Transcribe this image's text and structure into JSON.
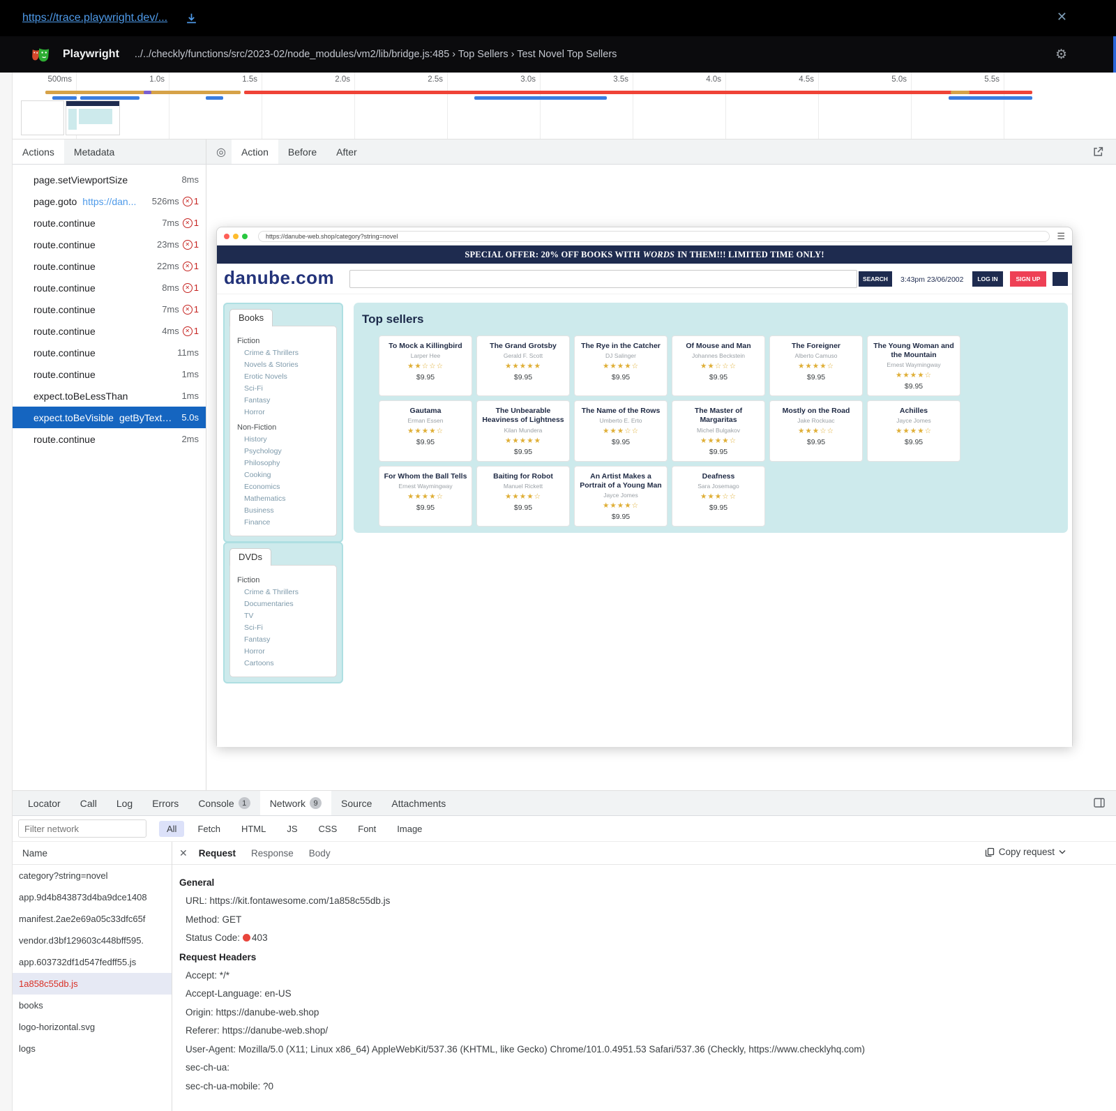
{
  "overlay": {
    "trace_link": "https://trace.playwright.dev/..."
  },
  "header": {
    "app_title": "Playwright",
    "trace_path": "../../checkly/functions/src/2023-02/node_modules/vm2/lib/bridge.js:485 › Top Sellers › Test Novel Top Sellers"
  },
  "timeline": {
    "ticks": [
      "500ms",
      "1.0s",
      "1.5s",
      "2.0s",
      "2.5s",
      "3.0s",
      "3.5s",
      "4.0s",
      "4.5s",
      "5.0s",
      "5.5s"
    ]
  },
  "colors": {
    "accent_blue": "#1565c0",
    "error_red": "#c5221f",
    "timeline_red": "#ef4337",
    "timeline_orange": "#d6a248",
    "timeline_blue": "#3a7de0",
    "timeline_purple": "#7a5fd0",
    "site_navy": "#1e2b4f",
    "site_red": "#ee4055",
    "site_teal": "#cdeaec",
    "star_gold": "#dfae35"
  },
  "actions_panel": {
    "tabs": [
      {
        "label": "Actions",
        "selected": true
      },
      {
        "label": "Metadata"
      }
    ],
    "rows": [
      {
        "label": "page.setViewportSize",
        "time": "8ms"
      },
      {
        "label": "page.goto",
        "link": "https://dan...",
        "time": "526ms",
        "errors": "1"
      },
      {
        "label": "route.continue",
        "time": "7ms",
        "errors": "1"
      },
      {
        "label": "route.continue",
        "time": "23ms",
        "errors": "1"
      },
      {
        "label": "route.continue",
        "time": "22ms",
        "errors": "1"
      },
      {
        "label": "route.continue",
        "time": "8ms",
        "errors": "1"
      },
      {
        "label": "route.continue",
        "time": "7ms",
        "errors": "1"
      },
      {
        "label": "route.continue",
        "time": "4ms",
        "errors": "1"
      },
      {
        "label": "route.continue",
        "time": "11ms"
      },
      {
        "label": "route.continue",
        "time": "1ms"
      },
      {
        "label": "expect.toBeLessThan",
        "time": "1ms"
      },
      {
        "label": "expect.toBeVisible",
        "selector": "getByText…",
        "time": "5.0s",
        "selected": true
      },
      {
        "label": "route.continue",
        "time": "2ms"
      }
    ]
  },
  "action_view": {
    "tabs": [
      {
        "label": "Action",
        "selected": true
      },
      {
        "label": "Before"
      },
      {
        "label": "After"
      }
    ]
  },
  "site": {
    "url": "https://danube-web.shop/category?string=novel",
    "banner": {
      "pre": "SPECIAL OFFER: 20% OFF BOOKS WITH ",
      "em": "WORDS",
      "post": " IN THEM!!! LIMITED TIME ONLY!"
    },
    "logo": "danube.com",
    "search_button": "SEARCH",
    "datetime": "3:43pm 23/06/2002",
    "login": "LOG IN",
    "signup": "SIGN UP",
    "books_nav": {
      "title": "Books",
      "rows": [
        {
          "label": "Fiction",
          "header": true
        },
        {
          "label": "Crime & Thrillers"
        },
        {
          "label": "Novels & Stories"
        },
        {
          "label": "Erotic Novels"
        },
        {
          "label": "Sci-Fi"
        },
        {
          "label": "Fantasy"
        },
        {
          "label": "Horror"
        },
        {
          "label": "Non-Fiction",
          "header": true
        },
        {
          "label": "History"
        },
        {
          "label": "Psychology"
        },
        {
          "label": "Philosophy"
        },
        {
          "label": "Cooking"
        },
        {
          "label": "Economics"
        },
        {
          "label": "Mathematics"
        },
        {
          "label": "Business"
        },
        {
          "label": "Finance"
        }
      ]
    },
    "dvds_nav": {
      "title": "DVDs",
      "rows": [
        {
          "label": "Fiction",
          "header": true
        },
        {
          "label": "Crime & Thrillers"
        },
        {
          "label": "Documentaries"
        },
        {
          "label": "TV"
        },
        {
          "label": "Sci-Fi"
        },
        {
          "label": "Fantasy"
        },
        {
          "label": "Horror"
        },
        {
          "label": "Cartoons"
        }
      ]
    },
    "top_sellers": {
      "title": "Top sellers",
      "items": [
        {
          "title": "To Mock a Killingbird",
          "author": "Larper Hee",
          "rating": 2,
          "price": "$9.95"
        },
        {
          "title": "The Grand Grotsby",
          "author": "Gerald F. Scott",
          "rating": 5,
          "price": "$9.95"
        },
        {
          "title": "The Rye in the Catcher",
          "author": "DJ Salinger",
          "rating": 4,
          "price": "$9.95"
        },
        {
          "title": "Of Mouse and Man",
          "author": "Johannes Beckstein",
          "rating": 2,
          "price": "$9.95"
        },
        {
          "title": "The Foreigner",
          "author": "Alberto Camuso",
          "rating": 4,
          "price": "$9.95"
        },
        {
          "title": "The Young Woman and the Mountain",
          "author": "Ernest Waymingway",
          "rating": 4,
          "price": "$9.95"
        },
        {
          "title": "Gautama",
          "author": "Erman Essen",
          "rating": 4,
          "price": "$9.95"
        },
        {
          "title": "The Unbearable Heaviness of Lightness",
          "author": "Kilan Mundera",
          "rating": 5,
          "price": "$9.95"
        },
        {
          "title": "The Name of the Rows",
          "author": "Umberto E. Erto",
          "rating": 3,
          "price": "$9.95"
        },
        {
          "title": "The Master of Margaritas",
          "author": "Michel Bulgakov",
          "rating": 4,
          "price": "$9.95"
        },
        {
          "title": "Mostly on the Road",
          "author": "Jake Rockuac",
          "rating": 3,
          "price": "$9.95"
        },
        {
          "title": "Achilles",
          "author": "Jayce Jomes",
          "rating": 4,
          "price": "$9.95"
        },
        {
          "title": "For Whom the Ball Tells",
          "author": "Ernest Waymingway",
          "rating": 4,
          "price": "$9.95"
        },
        {
          "title": "Baiting for Robot",
          "author": "Manuel Rickett",
          "rating": 4,
          "price": "$9.95"
        },
        {
          "title": "An Artist Makes a Portrait of a Young Man",
          "author": "Jayce Jomes",
          "rating": 4,
          "price": "$9.95"
        },
        {
          "title": "Deafness",
          "author": "Sara Josemago",
          "rating": 3,
          "price": "$9.95"
        }
      ]
    }
  },
  "network_panel": {
    "tabs": [
      {
        "label": "Locator"
      },
      {
        "label": "Call"
      },
      {
        "label": "Log"
      },
      {
        "label": "Errors"
      },
      {
        "label": "Console",
        "badge": "1"
      },
      {
        "label": "Network",
        "badge": "9",
        "selected": true
      },
      {
        "label": "Source"
      },
      {
        "label": "Attachments"
      }
    ],
    "filter_placeholder": "Filter network",
    "type_filters": [
      {
        "label": "All",
        "selected": true
      },
      {
        "label": "Fetch"
      },
      {
        "label": "HTML"
      },
      {
        "label": "JS"
      },
      {
        "label": "CSS"
      },
      {
        "label": "Font"
      },
      {
        "label": "Image"
      }
    ],
    "name_header": "Name",
    "requests": [
      {
        "name": "category?string=novel"
      },
      {
        "name": "app.9d4b843873d4ba9dce1408"
      },
      {
        "name": "manifest.2ae2e69a05c33dfc65f"
      },
      {
        "name": "vendor.d3bf129603c448bff595."
      },
      {
        "name": "app.603732df1d547fedff55.js"
      },
      {
        "name": "1a858c55db.js",
        "selected": true,
        "error": true
      },
      {
        "name": "books"
      },
      {
        "name": "logo-horizontal.svg"
      },
      {
        "name": "logs"
      }
    ],
    "detail": {
      "tabs": [
        {
          "label": "Request",
          "selected": true
        },
        {
          "label": "Response"
        },
        {
          "label": "Body"
        }
      ],
      "copy_label": "Copy request",
      "general_title": "General",
      "url_row": "URL: https://kit.fontawesome.com/1a858c55db.js",
      "method_row": "Method: GET",
      "status_label": "Status Code:",
      "status_code": "403",
      "headers_title": "Request Headers",
      "header_rows": [
        {
          "text": "Accept: */*"
        },
        {
          "text": "Accept-Language: en-US"
        },
        {
          "text": "Origin: https://danube-web.shop"
        },
        {
          "text": "Referer: https://danube-web.shop/"
        },
        {
          "text": "User-Agent: Mozilla/5.0 (X11; Linux x86_64) AppleWebKit/537.36 (KHTML, like Gecko) Chrome/101.0.4951.53 Safari/537.36 (Checkly, https://www.checklyhq.com)"
        },
        {
          "text": "sec-ch-ua:"
        },
        {
          "text": "sec-ch-ua-mobile: ?0"
        }
      ]
    }
  }
}
